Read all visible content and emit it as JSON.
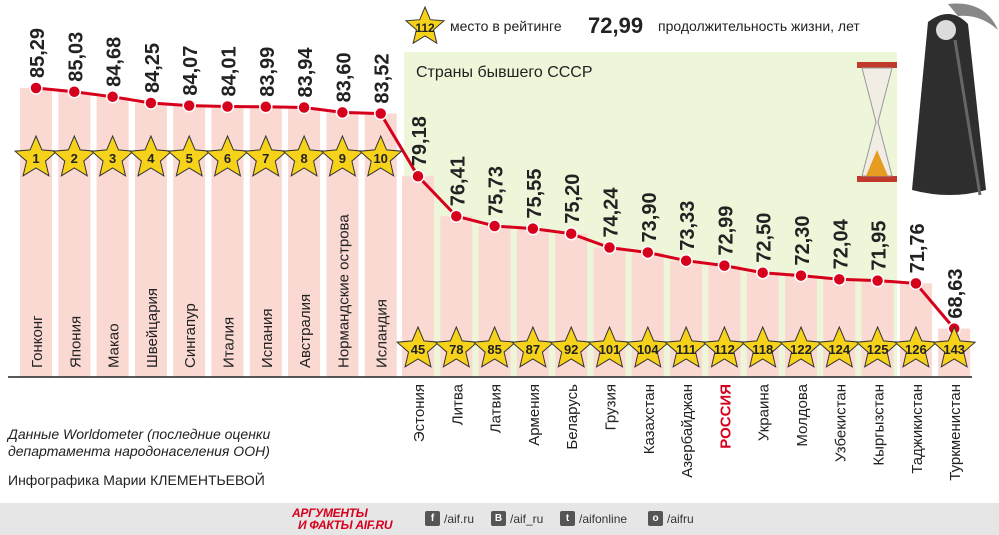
{
  "legend": {
    "rank_sample": "112",
    "rank_text": "место в рейтинге",
    "value_sample": "72,99",
    "value_text": "продолжительность жизни, лет"
  },
  "ussr_label": "Страны бывшего СССР",
  "source": {
    "line1": "Данные Worldometer (последние оценки",
    "line2": "департамента народонаселения ООН)"
  },
  "credit": "Инфографика Марии КЛЕМЕНТЬЕВОЙ",
  "footer": {
    "logo_line1": "АРГУМЕНТЫ",
    "logo_line2": "И ФАКТЫ AIF.RU",
    "links": [
      {
        "icon": "f",
        "text": "/aif.ru"
      },
      {
        "icon": "B",
        "text": "/aif_ru"
      },
      {
        "icon": "t",
        "text": "/aifonline"
      },
      {
        "icon": "o",
        "text": "/aifru"
      }
    ]
  },
  "colors": {
    "line": "#d6001c",
    "bar": "#f9d9d2",
    "ussr_bg": "#eef6d9",
    "star": "#f7d21a",
    "highlight": "#d6001c"
  },
  "chart_data": {
    "type": "line",
    "ylabel": "продолжительность жизни, лет",
    "top": [
      {
        "country": "Гонконг",
        "value": 85.29,
        "value_label": "85,29",
        "rank": 1
      },
      {
        "country": "Япония",
        "value": 85.03,
        "value_label": "85,03",
        "rank": 2
      },
      {
        "country": "Макао",
        "value": 84.68,
        "value_label": "84,68",
        "rank": 3
      },
      {
        "country": "Швейцария",
        "value": 84.25,
        "value_label": "84,25",
        "rank": 4
      },
      {
        "country": "Сингапур",
        "value": 84.07,
        "value_label": "84,07",
        "rank": 5
      },
      {
        "country": "Италия",
        "value": 84.01,
        "value_label": "84,01",
        "rank": 6
      },
      {
        "country": "Испания",
        "value": 83.99,
        "value_label": "83,99",
        "rank": 7
      },
      {
        "country": "Австралия",
        "value": 83.94,
        "value_label": "83,94",
        "rank": 8
      },
      {
        "country": "Нормандские острова",
        "value": 83.6,
        "value_label": "83,60",
        "rank": 9
      },
      {
        "country": "Исландия",
        "value": 83.52,
        "value_label": "83,52",
        "rank": 10
      }
    ],
    "ussr": [
      {
        "country": "Эстония",
        "value": 79.18,
        "value_label": "79,18",
        "rank": 45
      },
      {
        "country": "Литва",
        "value": 76.41,
        "value_label": "76,41",
        "rank": 78
      },
      {
        "country": "Латвия",
        "value": 75.73,
        "value_label": "75,73",
        "rank": 85
      },
      {
        "country": "Армения",
        "value": 75.55,
        "value_label": "75,55",
        "rank": 87
      },
      {
        "country": "Беларусь",
        "value": 75.2,
        "value_label": "75,20",
        "rank": 92
      },
      {
        "country": "Грузия",
        "value": 74.24,
        "value_label": "74,24",
        "rank": 101
      },
      {
        "country": "Казахстан",
        "value": 73.9,
        "value_label": "73,90",
        "rank": 104
      },
      {
        "country": "Азербайджан",
        "value": 73.33,
        "value_label": "73,33",
        "rank": 111
      },
      {
        "country": "РОССИЯ",
        "value": 72.99,
        "value_label": "72,99",
        "rank": 112,
        "highlight": true
      },
      {
        "country": "Украина",
        "value": 72.5,
        "value_label": "72,50",
        "rank": 118
      },
      {
        "country": "Молдова",
        "value": 72.3,
        "value_label": "72,30",
        "rank": 122
      },
      {
        "country": "Узбекистан",
        "value": 72.04,
        "value_label": "72,04",
        "rank": 124
      },
      {
        "country": "Кыргызстан",
        "value": 71.95,
        "value_label": "71,95",
        "rank": 125
      },
      {
        "country": "Таджикистан",
        "value": 71.76,
        "value_label": "71,76",
        "rank": 126
      },
      {
        "country": "Туркменистан",
        "value": 68.63,
        "value_label": "68,63",
        "rank": 143
      }
    ]
  }
}
